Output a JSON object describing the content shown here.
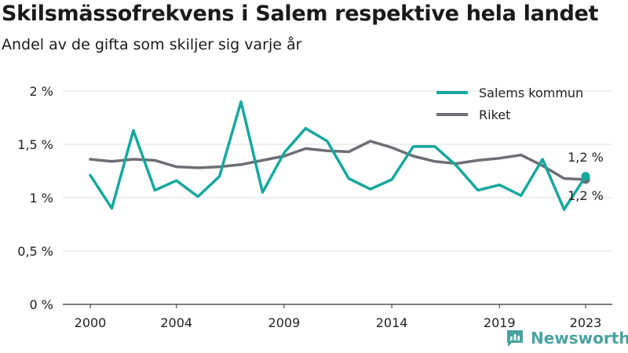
{
  "title": "Skilsmässofrekvens i Salem respektive hela landet",
  "subtitle": "Andel av de gifta som skiljer sig varje år",
  "brand": "Newsworthy",
  "chart_data": {
    "type": "line",
    "x": [
      2000,
      2001,
      2002,
      2003,
      2004,
      2005,
      2006,
      2007,
      2008,
      2009,
      2010,
      2011,
      2012,
      2013,
      2014,
      2015,
      2016,
      2017,
      2018,
      2019,
      2020,
      2021,
      2022,
      2023
    ],
    "x_ticks": [
      2000,
      2004,
      2009,
      2014,
      2019,
      2023
    ],
    "x_tick_labels": [
      "2000",
      "2004",
      "2009",
      "2014",
      "2019",
      "2023"
    ],
    "y_ticks": [
      0,
      0.5,
      1,
      1.5,
      2
    ],
    "y_tick_labels": [
      "0 %",
      "0,5 %",
      "1 %",
      "1,5 %",
      "2 %"
    ],
    "ylim": [
      0,
      2
    ],
    "grid": "horizontal",
    "legend": "top-right",
    "series": [
      {
        "name": "Salems kommun",
        "color": "#16a89d",
        "values": [
          1.21,
          0.9,
          1.63,
          1.07,
          1.16,
          1.01,
          1.2,
          1.9,
          1.05,
          1.42,
          1.65,
          1.53,
          1.18,
          1.08,
          1.17,
          1.48,
          1.48,
          1.3,
          1.07,
          1.12,
          1.02,
          1.36,
          0.89,
          1.2
        ],
        "end_label": "1,2 %"
      },
      {
        "name": "Riket",
        "color": "#6e6e76",
        "values": [
          1.36,
          1.34,
          1.36,
          1.35,
          1.29,
          1.28,
          1.29,
          1.31,
          1.35,
          1.39,
          1.46,
          1.44,
          1.43,
          1.53,
          1.47,
          1.39,
          1.34,
          1.32,
          1.35,
          1.37,
          1.4,
          1.3,
          1.18,
          1.17
        ],
        "end_label": "1,2 %"
      }
    ]
  }
}
